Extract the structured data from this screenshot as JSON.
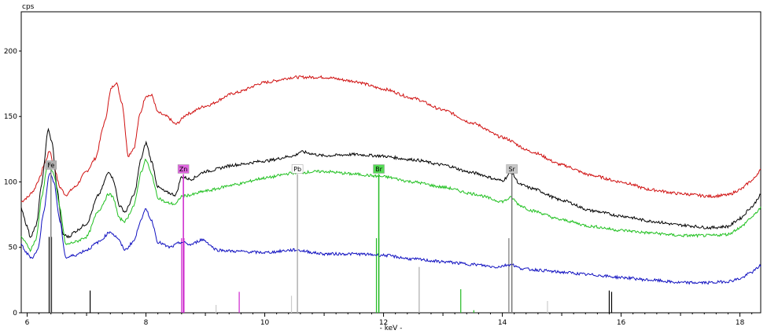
{
  "chart_data": {
    "type": "line",
    "title": "",
    "xlabel": "- keV -",
    "ylabel": "cps",
    "xlim": [
      5.9,
      18.35
    ],
    "ylim": [
      0,
      230
    ],
    "x_ticks": [
      6,
      8,
      10,
      12,
      14,
      16,
      18
    ],
    "y_ticks": [
      0,
      50,
      100,
      150,
      200
    ],
    "grid": false,
    "series": [
      {
        "color": "#d01010",
        "points": [
          [
            5.9,
            85
          ],
          [
            6.0,
            88
          ],
          [
            6.1,
            93
          ],
          [
            6.2,
            102
          ],
          [
            6.3,
            115
          ],
          [
            6.38,
            124
          ],
          [
            6.45,
            112
          ],
          [
            6.55,
            96
          ],
          [
            6.65,
            90
          ],
          [
            6.8,
            96
          ],
          [
            7.0,
            108
          ],
          [
            7.15,
            118
          ],
          [
            7.3,
            145
          ],
          [
            7.42,
            172
          ],
          [
            7.5,
            176
          ],
          [
            7.6,
            160
          ],
          [
            7.7,
            120
          ],
          [
            7.8,
            126
          ],
          [
            7.9,
            152
          ],
          [
            8.0,
            166
          ],
          [
            8.1,
            166
          ],
          [
            8.2,
            153
          ],
          [
            8.35,
            150
          ],
          [
            8.5,
            144
          ],
          [
            8.7,
            152
          ],
          [
            9.0,
            158
          ],
          [
            9.5,
            168
          ],
          [
            10.0,
            176
          ],
          [
            10.5,
            180
          ],
          [
            11.0,
            180
          ],
          [
            11.5,
            177
          ],
          [
            12.0,
            171
          ],
          [
            12.5,
            164
          ],
          [
            13.0,
            155
          ],
          [
            13.5,
            145
          ],
          [
            14.0,
            134
          ],
          [
            14.5,
            123
          ],
          [
            15.0,
            113
          ],
          [
            15.5,
            105
          ],
          [
            16.0,
            100
          ],
          [
            16.5,
            94
          ],
          [
            17.0,
            91
          ],
          [
            17.5,
            89
          ],
          [
            17.8,
            90
          ],
          [
            18.0,
            94
          ],
          [
            18.2,
            101
          ],
          [
            18.35,
            109
          ]
        ]
      },
      {
        "color": "#000000",
        "points": [
          [
            5.9,
            80
          ],
          [
            6.0,
            66
          ],
          [
            6.05,
            58
          ],
          [
            6.15,
            66
          ],
          [
            6.25,
            100
          ],
          [
            6.35,
            140
          ],
          [
            6.42,
            130
          ],
          [
            6.5,
            96
          ],
          [
            6.6,
            60
          ],
          [
            6.7,
            58
          ],
          [
            6.8,
            62
          ],
          [
            7.0,
            68
          ],
          [
            7.2,
            90
          ],
          [
            7.38,
            108
          ],
          [
            7.45,
            102
          ],
          [
            7.55,
            82
          ],
          [
            7.65,
            77
          ],
          [
            7.8,
            90
          ],
          [
            7.92,
            118
          ],
          [
            8.0,
            130
          ],
          [
            8.1,
            115
          ],
          [
            8.2,
            96
          ],
          [
            8.35,
            92
          ],
          [
            8.5,
            90
          ],
          [
            8.6,
            104
          ],
          [
            8.75,
            102
          ],
          [
            9.0,
            108
          ],
          [
            9.5,
            113
          ],
          [
            10.0,
            116
          ],
          [
            10.5,
            120
          ],
          [
            10.6,
            123
          ],
          [
            11.0,
            120
          ],
          [
            11.5,
            121
          ],
          [
            11.9,
            120
          ],
          [
            12.5,
            117
          ],
          [
            13.0,
            113
          ],
          [
            13.5,
            107
          ],
          [
            14.0,
            101
          ],
          [
            14.15,
            107
          ],
          [
            14.3,
            98
          ],
          [
            14.5,
            95
          ],
          [
            15.0,
            86
          ],
          [
            15.5,
            78
          ],
          [
            16.0,
            74
          ],
          [
            16.5,
            70
          ],
          [
            17.0,
            67
          ],
          [
            17.5,
            65
          ],
          [
            17.8,
            66
          ],
          [
            18.0,
            72
          ],
          [
            18.2,
            81
          ],
          [
            18.35,
            90
          ]
        ]
      },
      {
        "color": "#20c020",
        "points": [
          [
            5.9,
            58
          ],
          [
            6.0,
            52
          ],
          [
            6.05,
            48
          ],
          [
            6.15,
            56
          ],
          [
            6.25,
            90
          ],
          [
            6.35,
            115
          ],
          [
            6.45,
            106
          ],
          [
            6.55,
            80
          ],
          [
            6.65,
            52
          ],
          [
            6.8,
            54
          ],
          [
            7.0,
            58
          ],
          [
            7.2,
            78
          ],
          [
            7.38,
            91
          ],
          [
            7.45,
            88
          ],
          [
            7.55,
            72
          ],
          [
            7.65,
            70
          ],
          [
            7.8,
            82
          ],
          [
            7.92,
            108
          ],
          [
            8.0,
            117
          ],
          [
            8.1,
            105
          ],
          [
            8.2,
            88
          ],
          [
            8.35,
            84
          ],
          [
            8.5,
            83
          ],
          [
            8.6,
            89
          ],
          [
            8.75,
            90
          ],
          [
            9.0,
            93
          ],
          [
            9.5,
            98
          ],
          [
            10.0,
            103
          ],
          [
            10.5,
            107
          ],
          [
            11.0,
            108
          ],
          [
            11.5,
            106
          ],
          [
            12.0,
            104
          ],
          [
            12.5,
            100
          ],
          [
            13.0,
            96
          ],
          [
            13.5,
            91
          ],
          [
            14.0,
            85
          ],
          [
            14.15,
            88
          ],
          [
            14.3,
            82
          ],
          [
            14.5,
            78
          ],
          [
            15.0,
            71
          ],
          [
            15.5,
            66
          ],
          [
            16.0,
            63
          ],
          [
            16.5,
            61
          ],
          [
            17.0,
            59
          ],
          [
            17.5,
            59
          ],
          [
            17.8,
            60
          ],
          [
            18.0,
            65
          ],
          [
            18.2,
            73
          ],
          [
            18.35,
            80
          ]
        ]
      },
      {
        "color": "#1010c0",
        "points": [
          [
            5.9,
            52
          ],
          [
            6.0,
            45
          ],
          [
            6.08,
            42
          ],
          [
            6.18,
            48
          ],
          [
            6.28,
            78
          ],
          [
            6.38,
            108
          ],
          [
            6.45,
            100
          ],
          [
            6.55,
            70
          ],
          [
            6.65,
            42
          ],
          [
            6.8,
            44
          ],
          [
            7.0,
            48
          ],
          [
            7.2,
            54
          ],
          [
            7.4,
            62
          ],
          [
            7.5,
            58
          ],
          [
            7.65,
            48
          ],
          [
            7.8,
            55
          ],
          [
            7.92,
            72
          ],
          [
            8.0,
            79
          ],
          [
            8.1,
            70
          ],
          [
            8.2,
            54
          ],
          [
            8.4,
            50
          ],
          [
            8.6,
            54
          ],
          [
            8.75,
            52
          ],
          [
            8.95,
            56
          ],
          [
            9.2,
            48
          ],
          [
            9.5,
            47
          ],
          [
            10.0,
            46
          ],
          [
            10.5,
            48
          ],
          [
            11.0,
            45
          ],
          [
            11.5,
            45
          ],
          [
            12.0,
            44
          ],
          [
            12.5,
            41
          ],
          [
            13.0,
            39
          ],
          [
            13.5,
            37
          ],
          [
            13.9,
            35
          ],
          [
            14.15,
            37
          ],
          [
            14.3,
            34
          ],
          [
            14.5,
            33
          ],
          [
            15.0,
            31
          ],
          [
            15.5,
            29
          ],
          [
            16.0,
            27
          ],
          [
            16.5,
            25
          ],
          [
            17.0,
            23
          ],
          [
            17.5,
            23
          ],
          [
            17.8,
            24
          ],
          [
            18.0,
            26
          ],
          [
            18.2,
            31
          ],
          [
            18.35,
            36
          ]
        ]
      }
    ],
    "element_lines": [
      {
        "label": "Fe",
        "energy": 6.4,
        "label_color": "#b0b0b0",
        "line_color": "#888888",
        "height": 115
      },
      {
        "label": "Zn",
        "energy": 8.63,
        "label_color": "#e066e0",
        "line_color": "#cc22cc",
        "height": 112
      },
      {
        "label": "Pb",
        "energy": 10.55,
        "label_color": "#ffffff",
        "line_color": "#b0b0b0",
        "height": 112
      },
      {
        "label": "Br",
        "energy": 11.92,
        "label_color": "#55dd55",
        "line_color": "#22bb22",
        "height": 112
      },
      {
        "label": "Sr",
        "energy": 14.16,
        "label_color": "#c8c8c8",
        "line_color": "#777777",
        "height": 112
      }
    ],
    "marker_lines": [
      {
        "energy": 6.37,
        "height": 58,
        "color": "#000000"
      },
      {
        "energy": 6.41,
        "height": 58,
        "color": "#000000"
      },
      {
        "energy": 7.06,
        "height": 17,
        "color": "#000000"
      },
      {
        "energy": 8.6,
        "height": 57,
        "color": "#cc22cc"
      },
      {
        "energy": 8.64,
        "height": 57,
        "color": "#cc22cc"
      },
      {
        "energy": 9.57,
        "height": 16,
        "color": "#cc22cc"
      },
      {
        "energy": 9.18,
        "height": 6,
        "color": "#cccccc"
      },
      {
        "energy": 10.45,
        "height": 13,
        "color": "#cccccc"
      },
      {
        "energy": 11.88,
        "height": 57,
        "color": "#22bb22"
      },
      {
        "energy": 11.92,
        "height": 57,
        "color": "#22bb22"
      },
      {
        "energy": 12.6,
        "height": 35,
        "color": "#aaaaaa"
      },
      {
        "energy": 13.3,
        "height": 18,
        "color": "#22bb22"
      },
      {
        "energy": 13.52,
        "height": 2,
        "color": "#22bb22"
      },
      {
        "energy": 14.11,
        "height": 57,
        "color": "#777777"
      },
      {
        "energy": 14.76,
        "height": 9,
        "color": "#cccccc"
      },
      {
        "energy": 15.8,
        "height": 17,
        "color": "#000000"
      },
      {
        "energy": 15.84,
        "height": 16,
        "color": "#000000"
      }
    ]
  }
}
